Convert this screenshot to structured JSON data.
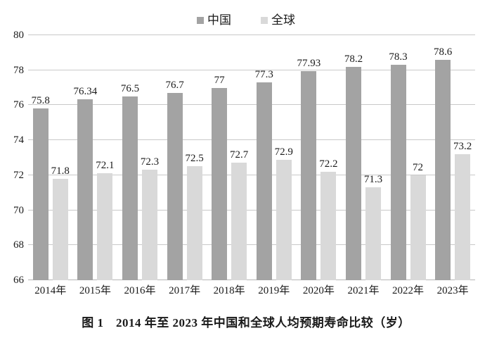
{
  "caption": "图 1　2014 年至 2023 年中国和全球人均预期寿命比较（岁）",
  "colors": {
    "china_bar": "#a3a3a3",
    "global_bar": "#d9d9d9",
    "gridline": "#c9c9c9",
    "text": "#1a1a1a"
  },
  "chart_data": {
    "type": "bar",
    "title": "图 1　2014 年至 2023 年中国和全球人均预期寿命比较（岁）",
    "xlabel": "",
    "ylabel": "",
    "categories": [
      "2014年",
      "2015年",
      "2016年",
      "2017年",
      "2018年",
      "2019年",
      "2020年",
      "2021年",
      "2022年",
      "2023年"
    ],
    "series": [
      {
        "name": "中国",
        "color": "#a3a3a3",
        "values": [
          75.8,
          76.34,
          76.5,
          76.7,
          77,
          77.3,
          77.93,
          78.2,
          78.3,
          78.6
        ]
      },
      {
        "name": "全球",
        "color": "#d9d9d9",
        "values": [
          71.8,
          72.1,
          72.3,
          72.5,
          72.7,
          72.9,
          72.2,
          71.3,
          72,
          73.2
        ]
      }
    ],
    "ylim": [
      66,
      80
    ],
    "yticks": [
      66,
      68,
      70,
      72,
      74,
      76,
      78,
      80
    ],
    "grid": true,
    "legend_position": "top",
    "data_labels": true
  }
}
